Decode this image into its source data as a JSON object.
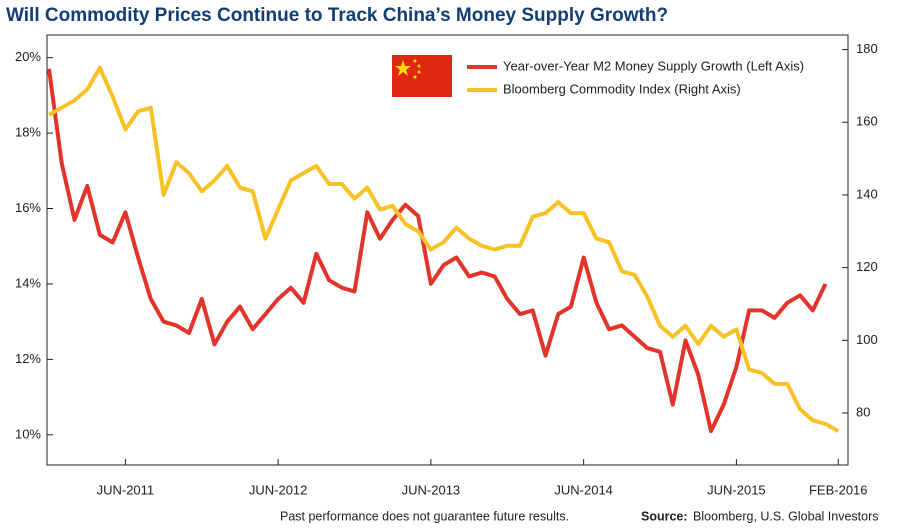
{
  "chart_data": {
    "type": "line",
    "title": "Will Commodity Prices Continue to Track China’s Money Supply Growth?",
    "x": [
      "2010-12",
      "2011-01",
      "2011-02",
      "2011-03",
      "2011-04",
      "2011-05",
      "2011-06",
      "2011-07",
      "2011-08",
      "2011-09",
      "2011-10",
      "2011-11",
      "2011-12",
      "2012-01",
      "2012-02",
      "2012-03",
      "2012-04",
      "2012-05",
      "2012-06",
      "2012-07",
      "2012-08",
      "2012-09",
      "2012-10",
      "2012-11",
      "2012-12",
      "2013-01",
      "2013-02",
      "2013-03",
      "2013-04",
      "2013-05",
      "2013-06",
      "2013-07",
      "2013-08",
      "2013-09",
      "2013-10",
      "2013-11",
      "2013-12",
      "2014-01",
      "2014-02",
      "2014-03",
      "2014-04",
      "2014-05",
      "2014-06",
      "2014-07",
      "2014-08",
      "2014-09",
      "2014-10",
      "2014-11",
      "2014-12",
      "2015-01",
      "2015-02",
      "2015-03",
      "2015-04",
      "2015-05",
      "2015-06",
      "2015-07",
      "2015-08",
      "2015-09",
      "2015-10",
      "2015-11",
      "2015-12",
      "2016-01",
      "2016-02"
    ],
    "series": [
      {
        "name": "Year-over-Year M2 Money Supply Growth (Left Axis)",
        "color": "#e3342b",
        "axis": "y",
        "values": [
          19.7,
          17.2,
          15.7,
          16.6,
          15.3,
          15.1,
          15.9,
          14.7,
          13.6,
          13.0,
          12.9,
          12.7,
          13.6,
          12.4,
          13.0,
          13.4,
          12.8,
          13.2,
          13.6,
          13.9,
          13.5,
          14.8,
          14.1,
          13.9,
          13.8,
          15.9,
          15.2,
          15.7,
          16.1,
          15.8,
          14.0,
          14.5,
          14.7,
          14.2,
          14.3,
          14.2,
          13.6,
          13.2,
          13.3,
          12.1,
          13.2,
          13.4,
          14.7,
          13.5,
          12.8,
          12.9,
          12.6,
          12.3,
          12.2,
          10.8,
          12.5,
          11.6,
          10.1,
          10.8,
          11.8,
          13.3,
          13.3,
          13.1,
          13.5,
          13.7,
          13.3,
          14.0,
          null
        ]
      },
      {
        "name": "Bloomberg Commodity Index (Right Axis)",
        "color": "#f8c125",
        "axis": "y2",
        "values": [
          162,
          164,
          166,
          169,
          175,
          167,
          158,
          163,
          164,
          140,
          149,
          146,
          141,
          144,
          148,
          142,
          141,
          128,
          136,
          144,
          146,
          148,
          143,
          143,
          139,
          142,
          136,
          137,
          132,
          130,
          125,
          127,
          131,
          128,
          126,
          125,
          126,
          126,
          134,
          135,
          138,
          135,
          135,
          128,
          127,
          119,
          118,
          112,
          104,
          101,
          104,
          99,
          104,
          101,
          103,
          92,
          91,
          88,
          88,
          81,
          78,
          77,
          75
        ]
      }
    ],
    "xticks": [
      {
        "value": "2011-06",
        "label": "JUN-2011"
      },
      {
        "value": "2012-06",
        "label": "JUN-2012"
      },
      {
        "value": "2013-06",
        "label": "JUN-2013"
      },
      {
        "value": "2014-06",
        "label": "JUN-2014"
      },
      {
        "value": "2015-06",
        "label": "JUN-2015"
      },
      {
        "value": "2016-02",
        "label": "FEB-2016"
      }
    ],
    "ylim": [
      9.2,
      20.6
    ],
    "yticks": [
      {
        "value": 10,
        "label": "10%"
      },
      {
        "value": 12,
        "label": "12%"
      },
      {
        "value": 14,
        "label": "14%"
      },
      {
        "value": 16,
        "label": "16%"
      },
      {
        "value": 18,
        "label": "18%"
      },
      {
        "value": 20,
        "label": "20%"
      }
    ],
    "y2lim": [
      65.7,
      184
    ],
    "y2ticks": [
      80,
      100,
      120,
      140,
      160,
      180
    ],
    "note": "Past performance does not guarantee future results.",
    "source_label": "Source:",
    "source": "Bloomberg, U.S. Global Investors"
  }
}
